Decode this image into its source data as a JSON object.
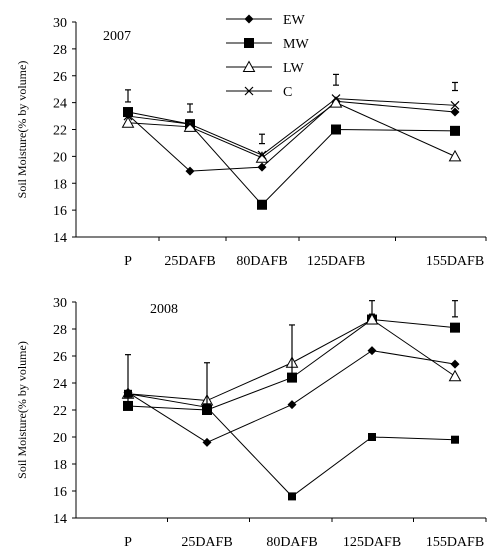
{
  "chart_data": [
    {
      "type": "line",
      "year_label": "2007",
      "xlabel": "",
      "ylabel": "Soil Moisture(% by volume)",
      "ylim": [
        14,
        30
      ],
      "yticks": [
        14,
        16,
        18,
        20,
        22,
        24,
        26,
        28,
        30
      ],
      "categories": [
        "P",
        "25DAFB",
        "80DAFB",
        "125DAFB",
        "155DAFB"
      ],
      "legend_position": "top-center",
      "series": [
        {
          "name": "EW",
          "marker": "diamond",
          "values": [
            23.1,
            18.9,
            19.2,
            24.1,
            23.3
          ]
        },
        {
          "name": "MW",
          "marker": "square",
          "values": [
            23.3,
            22.4,
            16.4,
            22.0,
            21.9
          ]
        },
        {
          "name": "LW",
          "marker": "triangle-open",
          "values": [
            22.5,
            22.2,
            19.9,
            24.0,
            20.0
          ]
        },
        {
          "name": "C",
          "marker": "x",
          "values": [
            23.0,
            22.4,
            20.1,
            24.3,
            23.8
          ]
        }
      ],
      "error_bars": [
        {
          "x": "P",
          "center": 24.5,
          "half": 0.45
        },
        {
          "x": "25DAFB",
          "center": 23.6,
          "half": 0.3
        },
        {
          "x": "80DAFB",
          "center": 21.3,
          "half": 0.35
        },
        {
          "x": "125DAFB",
          "center": 25.7,
          "half": 0.4
        },
        {
          "x": "155DAFB",
          "center": 25.2,
          "half": 0.3
        }
      ]
    },
    {
      "type": "line",
      "year_label": "2008",
      "xlabel": "",
      "ylabel": "Soil Moisture(% by volume)",
      "ylim": [
        14,
        30
      ],
      "yticks": [
        14,
        16,
        18,
        20,
        22,
        24,
        26,
        28,
        30
      ],
      "categories": [
        "P",
        "25DAFB",
        "80DAFB",
        "125DAFB",
        "155DAFB"
      ],
      "series": [
        {
          "name": "EW",
          "marker": "diamond",
          "values": [
            23.3,
            19.6,
            22.4,
            26.4,
            25.4
          ]
        },
        {
          "name": "MW",
          "marker": "square",
          "values": [
            22.3,
            22.0,
            24.4,
            28.7,
            28.1
          ]
        },
        {
          "name": "LW",
          "marker": "triangle-open",
          "values": [
            23.2,
            22.7,
            25.5,
            28.7,
            24.5
          ]
        },
        {
          "name": "",
          "marker": "square-small",
          "values": [
            23.2,
            22.2,
            15.6,
            20.0,
            19.8
          ]
        }
      ],
      "error_bars": [
        {
          "x": "P",
          "center": 24.3,
          "half": 1.8
        },
        {
          "x": "25DAFB",
          "center": 23.6,
          "half": 1.9
        },
        {
          "x": "80DAFB",
          "center": 26.4,
          "half": 1.9
        },
        {
          "x": "125DAFB",
          "center": 29.6,
          "half": 0.5
        },
        {
          "x": "155DAFB",
          "center": 29.5,
          "half": 0.6
        }
      ]
    }
  ]
}
